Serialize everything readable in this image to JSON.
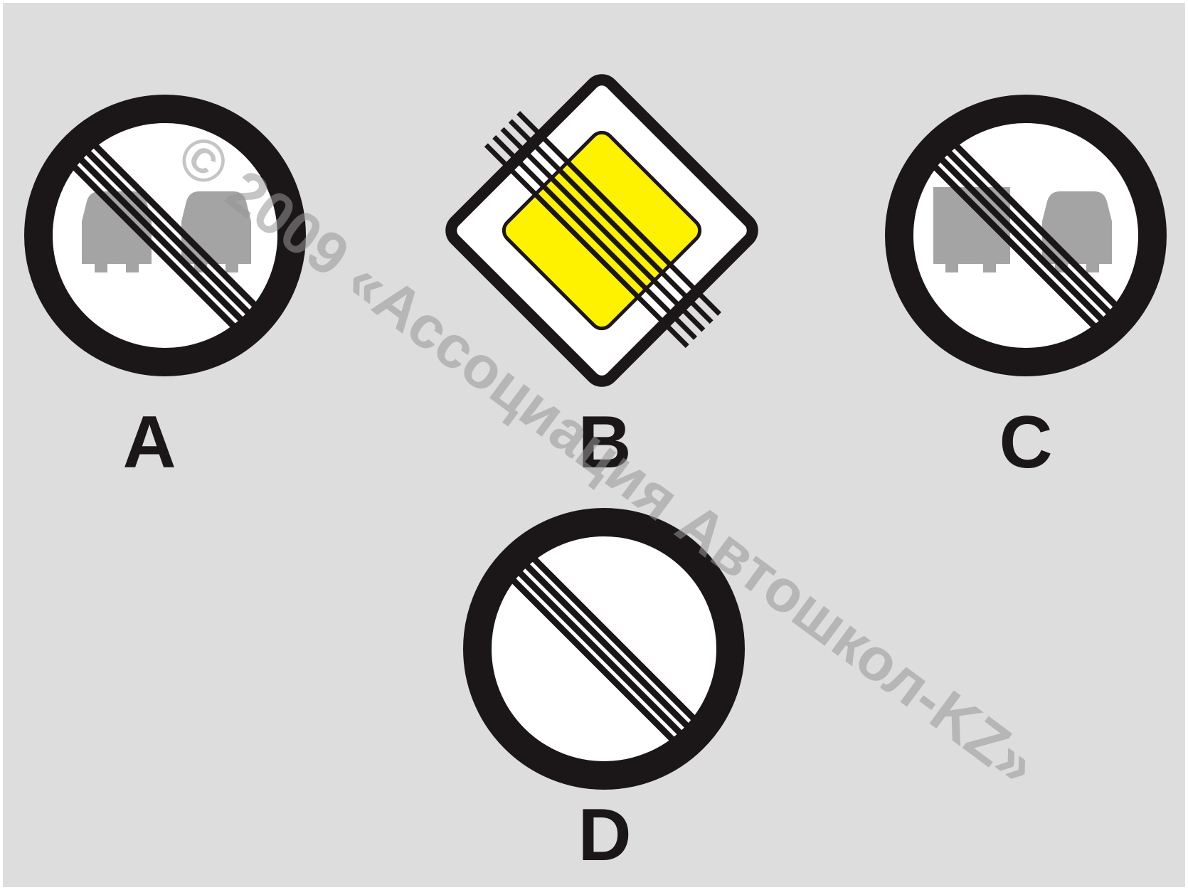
{
  "watermark": {
    "text": "© 2009 «Ассоциация Автошкол-KZ»"
  },
  "options": [
    {
      "letter": "A",
      "sign": "end-of-no-overtaking-sign-icon"
    },
    {
      "letter": "B",
      "sign": "end-of-priority-road-sign-icon"
    },
    {
      "letter": "C",
      "sign": "end-of-no-overtaking-trucks-sign-icon"
    },
    {
      "letter": "D",
      "sign": "end-of-all-restrictions-sign-icon"
    }
  ],
  "colors": {
    "background": "#dddddd",
    "ring": "#1b1718",
    "yellow": "#fff200",
    "vehicle": "#a4a4a4",
    "sign_face": "#ffffff"
  }
}
